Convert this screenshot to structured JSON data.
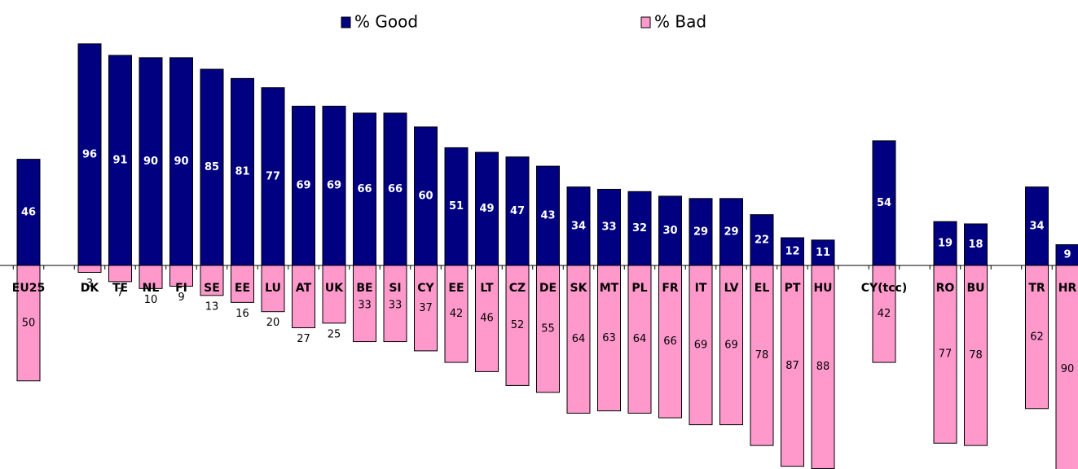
{
  "chart_data": {
    "type": "diverging-bar",
    "categories": [
      "EU25",
      null,
      "DK",
      "TE",
      "NL",
      "FI",
      "SE",
      "EE",
      "LU",
      "AT",
      "UK",
      "BE",
      "SI",
      "CY",
      "EE",
      "LT",
      "CZ",
      "DE",
      "SK",
      "MT",
      "PL",
      "FR",
      "IT",
      "LV",
      "EL",
      "PT",
      "HU",
      null,
      "CY(tcc)",
      null,
      "RO",
      "BU",
      null,
      "TR",
      "HR"
    ],
    "series": [
      {
        "name": "% Good",
        "color": "#000080",
        "values": [
          46,
          null,
          96,
          91,
          90,
          90,
          85,
          81,
          77,
          69,
          69,
          66,
          66,
          60,
          51,
          49,
          47,
          43,
          34,
          33,
          32,
          30,
          29,
          29,
          22,
          12,
          11,
          null,
          54,
          null,
          19,
          18,
          null,
          34,
          9
        ]
      },
      {
        "name": "% Bad",
        "color": "#ff99cc",
        "values": [
          50,
          null,
          3,
          7,
          10,
          9,
          13,
          16,
          20,
          27,
          25,
          33,
          33,
          37,
          42,
          46,
          52,
          55,
          64,
          63,
          64,
          66,
          69,
          69,
          78,
          87,
          88,
          null,
          42,
          null,
          77,
          78,
          null,
          62,
          90
        ]
      }
    ],
    "legend": "top"
  }
}
